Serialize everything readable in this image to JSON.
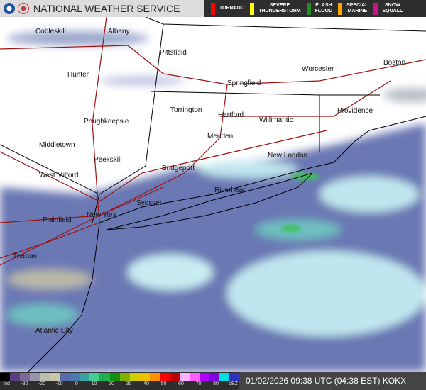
{
  "header": {
    "title": "NATIONAL WEATHER SERVICE",
    "logos": [
      "noaa-logo",
      "nws-logo"
    ],
    "warnings": [
      {
        "label": "TORNADO",
        "color": "#ff0000"
      },
      {
        "label": "SEVERE\nTHUNDERSTORM",
        "color": "#ffff00"
      },
      {
        "label": "FLASH\nFLOOD",
        "color": "#228b22"
      },
      {
        "label": "SPECIAL\nMARINE",
        "color": "#ffa500"
      },
      {
        "label": "SNOW\nSQUALL",
        "color": "#c71585"
      }
    ]
  },
  "cities": [
    {
      "name": "Cobleskill"
    },
    {
      "name": "Albany"
    },
    {
      "name": "Pittsfield"
    },
    {
      "name": "Hunter"
    },
    {
      "name": "Worcester"
    },
    {
      "name": "Boston"
    },
    {
      "name": "Springfield"
    },
    {
      "name": "Torrington"
    },
    {
      "name": "Hartford"
    },
    {
      "name": "Willimantic"
    },
    {
      "name": "Providence"
    },
    {
      "name": "Poughkeepsie"
    },
    {
      "name": "Meriden"
    },
    {
      "name": "Middletown"
    },
    {
      "name": "Peekskill"
    },
    {
      "name": "New London"
    },
    {
      "name": "Bridgeport"
    },
    {
      "name": "West Milford"
    },
    {
      "name": "Riverhead"
    },
    {
      "name": "Syosset"
    },
    {
      "name": "New York"
    },
    {
      "name": "Plainfield"
    },
    {
      "name": "Trenton"
    },
    {
      "name": "Atlantic City"
    }
  ],
  "legend": {
    "labels": [
      "nd",
      "-30",
      "-20",
      "-10",
      "0",
      "10",
      "20",
      "30",
      "40",
      "50",
      "60",
      "70",
      "80",
      "dBZ"
    ],
    "colors": [
      "#000000",
      "#5a3f80",
      "#7a6a98",
      "#9a94a8",
      "#bdbdb0",
      "#c8c8a8",
      "#5a6aa8",
      "#4a7ab0",
      "#3aa0a0",
      "#40d090",
      "#20b050",
      "#109010",
      "#80b000",
      "#d0d000",
      "#f0c000",
      "#ff9000",
      "#ff0000",
      "#c00000",
      "#ffb0ff",
      "#ff60ff",
      "#b000ff",
      "#8000e0",
      "#00e0e0",
      "#3030c0"
    ]
  },
  "timestamp": "01/02/2026 09:38 UTC (04:38 EST) KOKX"
}
